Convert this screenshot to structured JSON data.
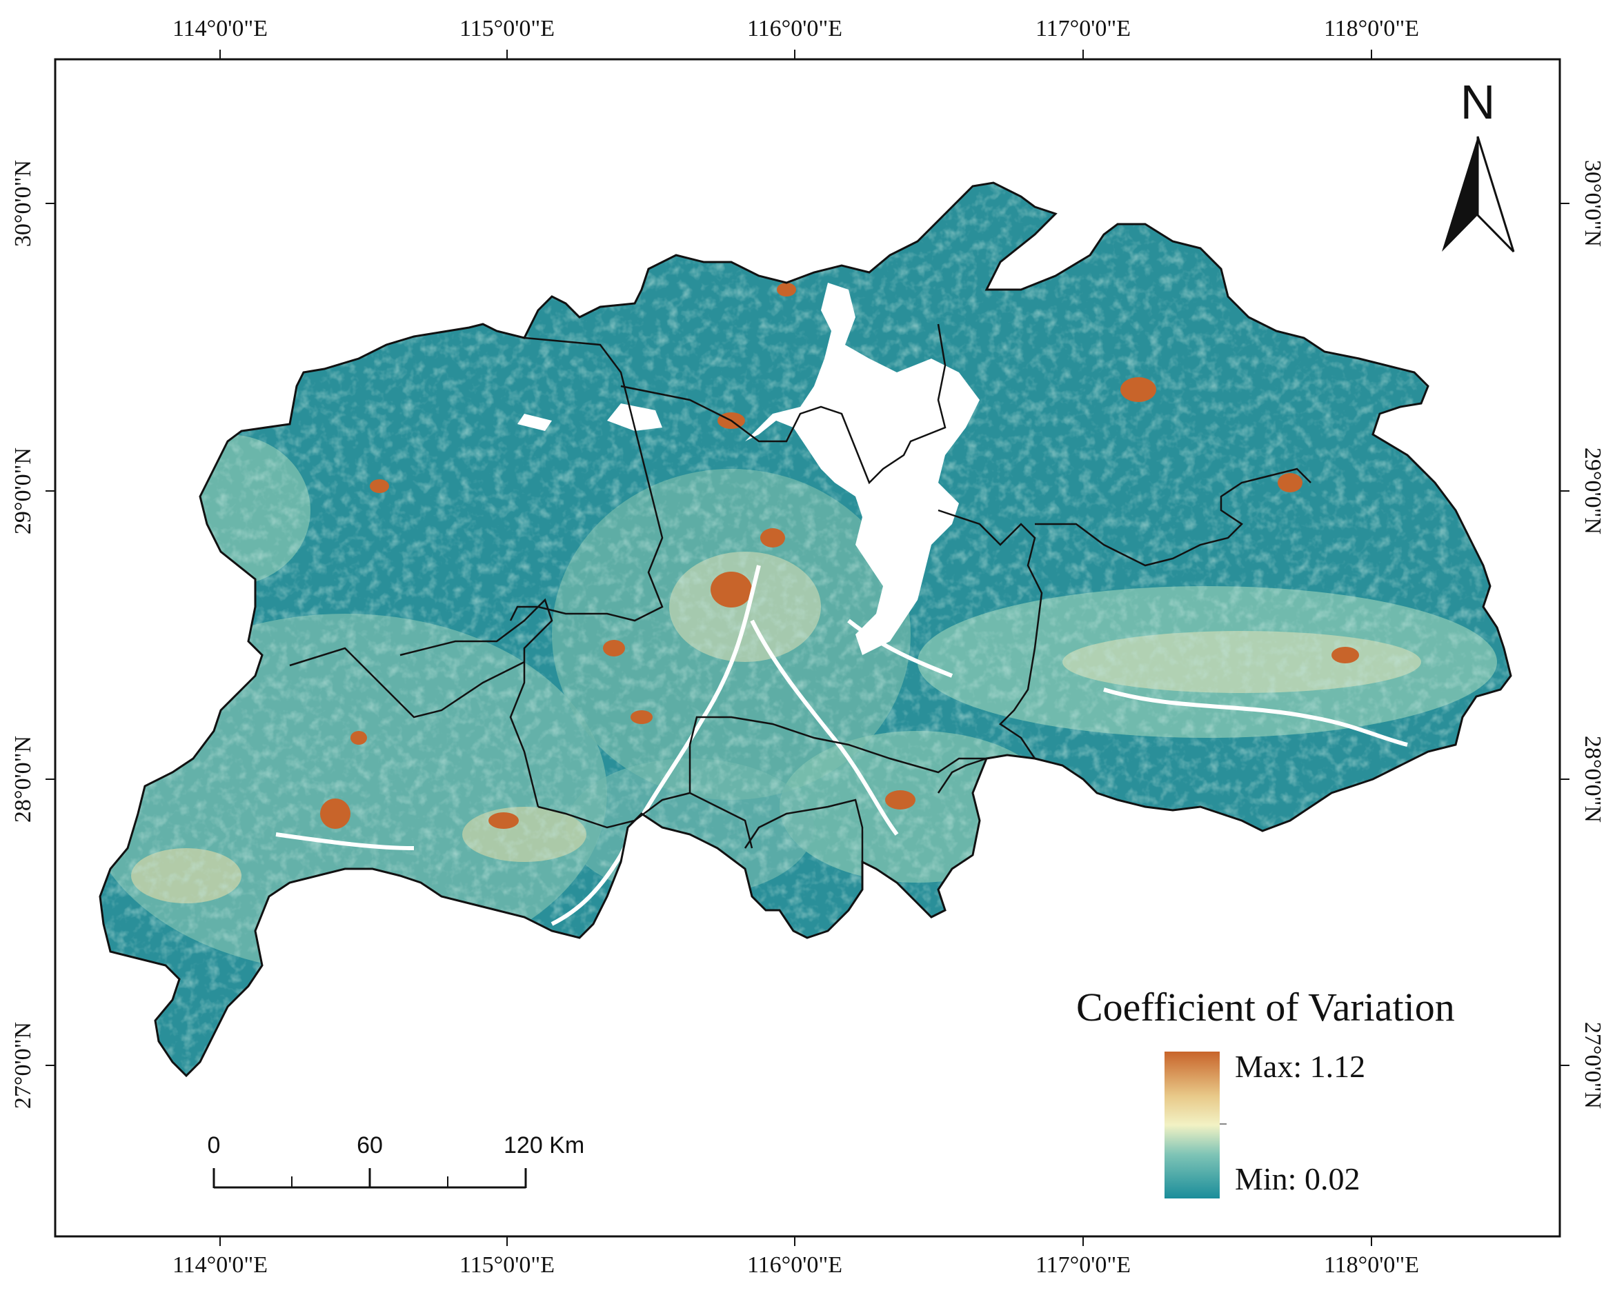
{
  "map": {
    "lon_ticks": [
      "114°0'0\"E",
      "115°0'0\"E",
      "116°0'0\"E",
      "117°0'0\"E",
      "118°0'0\"E"
    ],
    "lat_ticks": [
      "30°0'0\"N",
      "29°0'0\"N",
      "28°0'0\"N",
      "27°0'0\"N"
    ],
    "north_arrow": {
      "label": "N",
      "icon": "north-arrow-icon"
    },
    "scale_bar": {
      "labels": [
        "0",
        "60",
        "120 Km"
      ]
    },
    "legend": {
      "title": "Coefficient of Variation",
      "max_label": "Max: 1.12",
      "min_label": "Min: 0.02",
      "max_value": 1.12,
      "min_value": 0.02,
      "colors": [
        "#1a8d9a",
        "#7fc4b6",
        "#f2f2c4",
        "#e8c888",
        "#c8642a"
      ]
    },
    "colors": {
      "region_base": "#2a8f99",
      "region_light": "#7cbfae",
      "hotspot": "#c8642a",
      "lake": "#ffffff",
      "boundary": "#111111"
    }
  }
}
